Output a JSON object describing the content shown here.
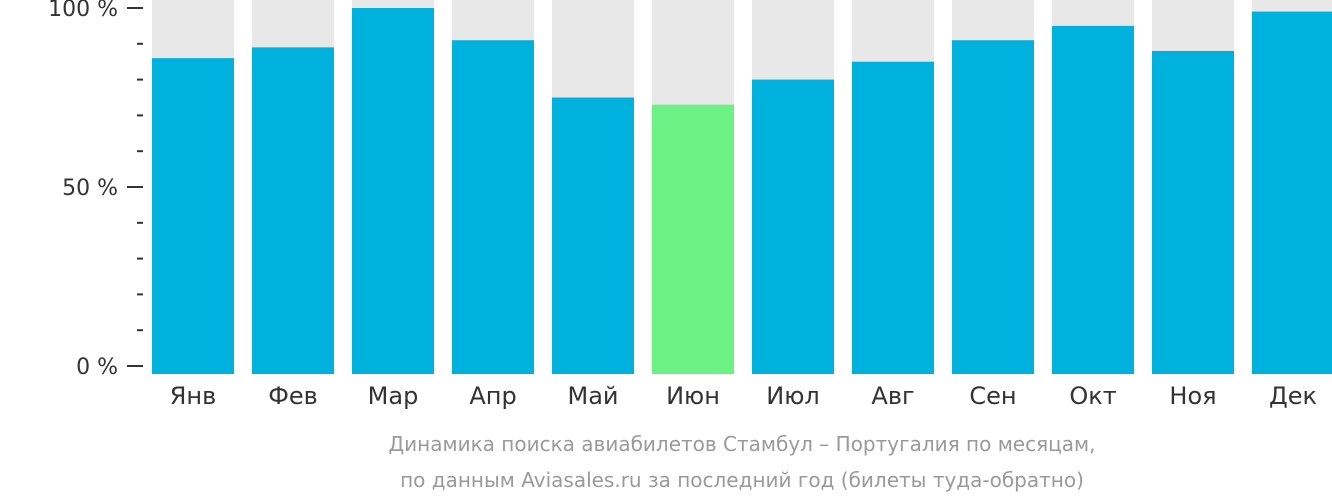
{
  "chart_data": {
    "type": "bar",
    "categories": [
      "Янв",
      "Фев",
      "Мар",
      "Апр",
      "Май",
      "Июн",
      "Июл",
      "Авг",
      "Сен",
      "Окт",
      "Ноя",
      "Дек"
    ],
    "values": [
      86,
      89,
      100,
      91,
      75,
      73,
      80,
      85,
      91,
      95,
      88,
      99
    ],
    "highlight_index": 5,
    "ylim": [
      0,
      100
    ],
    "yticks": [
      {
        "value": 0,
        "label": "0 %"
      },
      {
        "value": 50,
        "label": "50 %"
      },
      {
        "value": 100,
        "label": "100 %"
      }
    ],
    "minor_tick_step": 10,
    "colors": {
      "bar": "#00b0dd",
      "highlight": "#6cf185",
      "background_bar": "#e8e8e8",
      "axis": "#333333"
    }
  },
  "caption": {
    "line1": "Динамика поиска авиабилетов Стамбул – Португалия по месяцам,",
    "line2": "по данным Aviasales.ru за последний год (билеты туда-обратно)"
  }
}
